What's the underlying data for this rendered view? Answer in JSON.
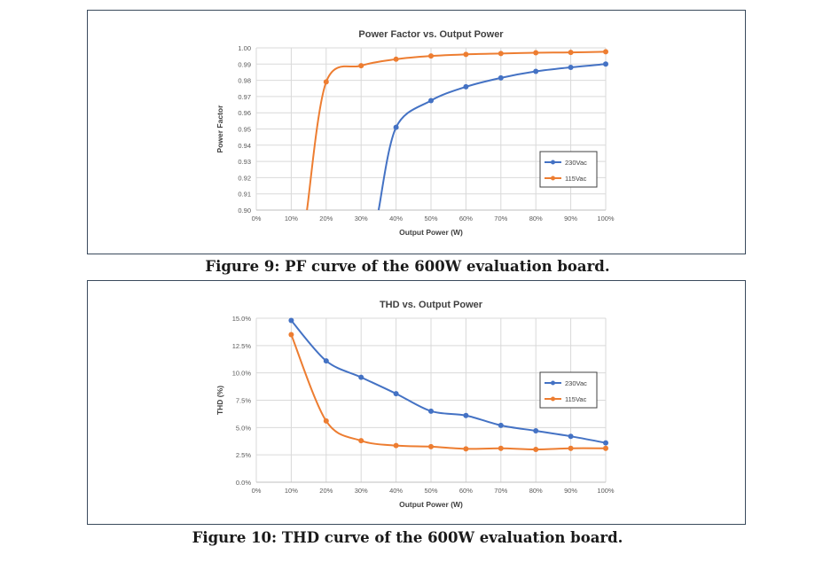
{
  "figures": [
    {
      "caption": "Figure 9: PF curve of the 600W evaluation board.",
      "chart_data": {
        "type": "line",
        "title": "Power Factor vs. Output Power",
        "xlabel": "Output Power (W)",
        "ylabel": "Power Factor",
        "categories": [
          "0%",
          "10%",
          "20%",
          "30%",
          "40%",
          "50%",
          "60%",
          "70%",
          "80%",
          "90%",
          "100%"
        ],
        "x": [
          0,
          10,
          20,
          30,
          40,
          50,
          60,
          70,
          80,
          90,
          100
        ],
        "ylim": [
          0.9,
          1.0
        ],
        "yticks": [
          "0.90",
          "0.91",
          "0.92",
          "0.93",
          "0.94",
          "0.95",
          "0.96",
          "0.97",
          "0.98",
          "0.99",
          "1.00"
        ],
        "grid": true,
        "legend": "right",
        "series": [
          {
            "name": "230Vac",
            "color": "#4472c4",
            "x": [
              35,
              40,
              50,
              60,
              70,
              80,
              90,
              100
            ],
            "values": [
              0.9,
              0.951,
              0.9675,
              0.976,
              0.9815,
              0.9855,
              0.988,
              0.99
            ],
            "markers": [
              false,
              true,
              true,
              true,
              true,
              true,
              true,
              true
            ]
          },
          {
            "name": "115Vac",
            "color": "#ed7d31",
            "x": [
              14.5,
              20,
              30,
              40,
              50,
              60,
              70,
              80,
              90,
              100
            ],
            "values": [
              0.9,
              0.979,
              0.989,
              0.993,
              0.995,
              0.996,
              0.9965,
              0.997,
              0.9972,
              0.9976
            ],
            "markers": [
              false,
              true,
              true,
              true,
              true,
              true,
              true,
              true,
              true,
              true
            ]
          }
        ]
      }
    },
    {
      "caption": "Figure 10: THD curve of the 600W evaluation board.",
      "chart_data": {
        "type": "line",
        "title": "THD vs. Output Power",
        "xlabel": "Output Power (W)",
        "ylabel": "THD (%)",
        "categories": [
          "0%",
          "10%",
          "20%",
          "30%",
          "40%",
          "50%",
          "60%",
          "70%",
          "80%",
          "90%",
          "100%"
        ],
        "x": [
          0,
          10,
          20,
          30,
          40,
          50,
          60,
          70,
          80,
          90,
          100
        ],
        "ylim": [
          0,
          15
        ],
        "yticks": [
          "0.0%",
          "2.5%",
          "5.0%",
          "7.5%",
          "10.0%",
          "12.5%",
          "15.0%"
        ],
        "grid": true,
        "legend": "right",
        "series": [
          {
            "name": "230Vac",
            "color": "#4472c4",
            "x": [
              10,
              20,
              30,
              40,
              50,
              60,
              70,
              80,
              90,
              100
            ],
            "values": [
              14.8,
              11.1,
              9.6,
              8.1,
              6.5,
              6.1,
              5.2,
              4.7,
              4.2,
              3.6
            ],
            "markers": [
              true,
              true,
              true,
              true,
              true,
              true,
              true,
              true,
              true,
              true
            ]
          },
          {
            "name": "115Vac",
            "color": "#ed7d31",
            "x": [
              10,
              20,
              30,
              40,
              50,
              60,
              70,
              80,
              90,
              100
            ],
            "values": [
              13.5,
              5.6,
              3.8,
              3.35,
              3.25,
              3.05,
              3.1,
              3.0,
              3.1,
              3.1
            ],
            "markers": [
              true,
              true,
              true,
              true,
              true,
              true,
              true,
              true,
              true,
              true
            ]
          }
        ]
      }
    }
  ]
}
